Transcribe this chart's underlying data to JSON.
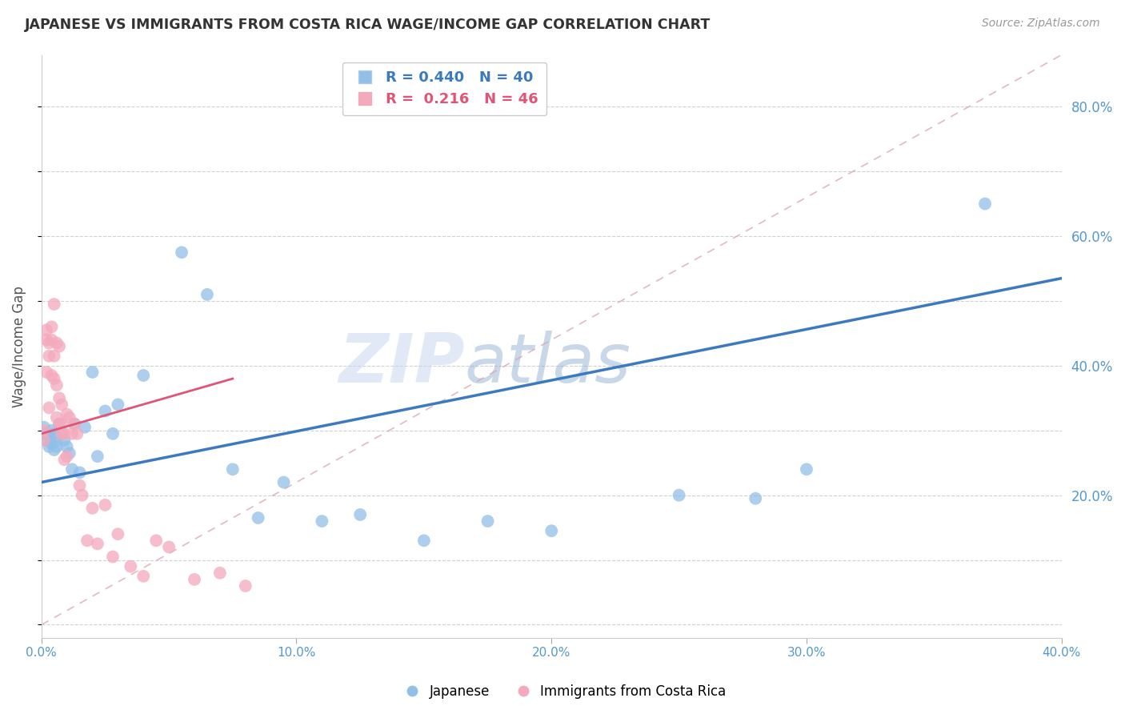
{
  "title": "JAPANESE VS IMMIGRANTS FROM COSTA RICA WAGE/INCOME GAP CORRELATION CHART",
  "source": "Source: ZipAtlas.com",
  "ylabel": "Wage/Income Gap",
  "xlim": [
    0.0,
    0.4
  ],
  "ylim": [
    -0.02,
    0.88
  ],
  "watermark_zip": "ZIP",
  "watermark_atlas": "atlas",
  "blue_color": "#92bfe8",
  "pink_color": "#f4a9bc",
  "blue_line_color": "#3a7bbf",
  "pink_line_color": "#e05575",
  "diag_line_color": "#dba8b0",
  "legend_blue_R": "0.440",
  "legend_blue_N": "40",
  "legend_pink_R": "0.216",
  "legend_pink_N": "46",
  "blue_scatter_x": [
    0.001,
    0.002,
    0.002,
    0.003,
    0.003,
    0.004,
    0.004,
    0.005,
    0.005,
    0.006,
    0.006,
    0.007,
    0.008,
    0.009,
    0.01,
    0.011,
    0.012,
    0.013,
    0.015,
    0.017,
    0.02,
    0.022,
    0.025,
    0.028,
    0.03,
    0.04,
    0.055,
    0.065,
    0.075,
    0.085,
    0.095,
    0.11,
    0.125,
    0.15,
    0.175,
    0.2,
    0.25,
    0.28,
    0.3,
    0.37
  ],
  "blue_scatter_y": [
    0.305,
    0.295,
    0.285,
    0.275,
    0.29,
    0.28,
    0.3,
    0.295,
    0.27,
    0.285,
    0.275,
    0.31,
    0.295,
    0.285,
    0.275,
    0.265,
    0.24,
    0.31,
    0.235,
    0.305,
    0.39,
    0.26,
    0.33,
    0.295,
    0.34,
    0.385,
    0.575,
    0.51,
    0.24,
    0.165,
    0.22,
    0.16,
    0.17,
    0.13,
    0.16,
    0.145,
    0.2,
    0.195,
    0.24,
    0.65
  ],
  "pink_scatter_x": [
    0.001,
    0.001,
    0.002,
    0.002,
    0.002,
    0.003,
    0.003,
    0.003,
    0.004,
    0.004,
    0.004,
    0.005,
    0.005,
    0.005,
    0.006,
    0.006,
    0.006,
    0.007,
    0.007,
    0.007,
    0.008,
    0.008,
    0.008,
    0.009,
    0.009,
    0.01,
    0.01,
    0.011,
    0.012,
    0.013,
    0.014,
    0.015,
    0.016,
    0.018,
    0.02,
    0.022,
    0.025,
    0.028,
    0.03,
    0.035,
    0.04,
    0.045,
    0.05,
    0.06,
    0.07,
    0.08
  ],
  "pink_scatter_y": [
    0.3,
    0.285,
    0.44,
    0.455,
    0.39,
    0.435,
    0.415,
    0.335,
    0.46,
    0.44,
    0.385,
    0.415,
    0.38,
    0.495,
    0.37,
    0.435,
    0.32,
    0.35,
    0.43,
    0.31,
    0.295,
    0.34,
    0.31,
    0.295,
    0.255,
    0.325,
    0.26,
    0.32,
    0.295,
    0.31,
    0.295,
    0.215,
    0.2,
    0.13,
    0.18,
    0.125,
    0.185,
    0.105,
    0.14,
    0.09,
    0.075,
    0.13,
    0.12,
    0.07,
    0.08,
    0.06
  ],
  "blue_line_x0": 0.0,
  "blue_line_y0": 0.22,
  "blue_line_x1": 0.4,
  "blue_line_y1": 0.535,
  "pink_line_x0": 0.0,
  "pink_line_y0": 0.295,
  "pink_line_x1": 0.075,
  "pink_line_y1": 0.38,
  "diag_line_x0": 0.0,
  "diag_line_y0": 0.0,
  "diag_line_x1": 0.4,
  "diag_line_y1": 0.88
}
